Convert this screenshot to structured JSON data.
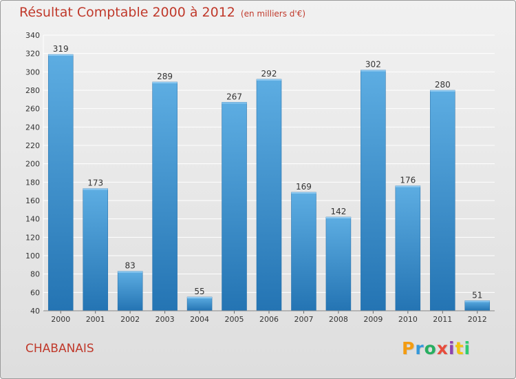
{
  "header": {
    "title": "Résultat Comptable 2000 à 2012",
    "unit": "(en milliers d'€)"
  },
  "footer": {
    "commune": "CHABANAIS",
    "logo": {
      "letters": [
        "P",
        "r",
        "o",
        "x",
        "i",
        "t",
        "i"
      ],
      "colors": [
        "#f39c12",
        "#3498db",
        "#27ae60",
        "#e74c3c",
        "#8e44ad",
        "#f1c40f",
        "#2ecc71"
      ]
    }
  },
  "colors": {
    "bar_top": "#5dade2",
    "bar_bottom": "#2474b3",
    "title": "#c0392b",
    "grid": "#ffffff"
  },
  "chart_data": {
    "type": "bar",
    "title": "Résultat Comptable 2000 à 2012",
    "subtitle": "(en milliers d'€)",
    "categories": [
      "2000",
      "2001",
      "2002",
      "2003",
      "2004",
      "2005",
      "2006",
      "2007",
      "2008",
      "2009",
      "2010",
      "2011",
      "2012"
    ],
    "values": [
      319,
      173,
      83,
      289,
      55,
      267,
      292,
      169,
      142,
      302,
      176,
      280,
      51
    ],
    "ylim": [
      40,
      340
    ],
    "yticks": [
      40,
      60,
      80,
      100,
      120,
      140,
      160,
      180,
      200,
      220,
      240,
      260,
      280,
      300,
      320,
      340
    ],
    "grid": true,
    "data_labels": true
  }
}
